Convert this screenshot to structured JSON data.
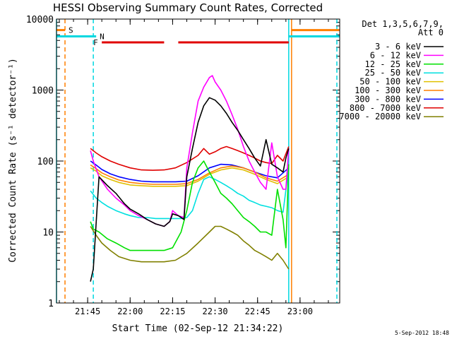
{
  "chart_data": {
    "type": "line",
    "title": "HESSI Observing Summary Count Rates, Corrected",
    "xlabel": "Start Time (02-Sep-12 21:34:22)",
    "ylabel": "Corrected Count Rate (s⁻¹ detector⁻¹)",
    "yscale": "log",
    "ylim": [
      1,
      10000
    ],
    "xlim": [
      "21:34",
      "23:14"
    ],
    "x_ticks": [
      "21:45",
      "22:00",
      "22:15",
      "22:30",
      "22:45",
      "23:00"
    ],
    "y_ticks": [
      "1",
      "10",
      "100",
      "1000",
      "10000"
    ],
    "legend_header": [
      "Det 1,3,5,6,7,9,",
      "Att 0"
    ],
    "legend_position": "right",
    "timestamp": "5-Sep-2012 18:48",
    "flags": [
      {
        "label": "S",
        "color": "#ff7f00",
        "y": 7000,
        "segments": [
          [
            "21:34",
            "21:37"
          ],
          [
            "22:57",
            "23:14"
          ]
        ]
      },
      {
        "label": "N",
        "color": "#00d8e0",
        "y": 5700,
        "segments": [
          [
            "21:34",
            "21:48"
          ],
          [
            "22:56",
            "23:14"
          ]
        ]
      },
      {
        "label": "F",
        "color": "#e00000",
        "y": 4700,
        "segments": [
          [
            "21:50",
            "22:12"
          ],
          [
            "22:17",
            "22:56"
          ]
        ]
      }
    ],
    "markers": [
      {
        "time": "21:34",
        "color": "#00d8e0",
        "style": "solid"
      },
      {
        "time": "21:37",
        "color": "#ff7f00",
        "style": "dashed"
      },
      {
        "time": "21:47",
        "color": "#00d8e0",
        "style": "dashed"
      },
      {
        "time": "22:56",
        "color": "#00d8e0",
        "style": "solid"
      },
      {
        "time": "22:57",
        "color": "#ff7f00",
        "style": "solid"
      },
      {
        "time": "23:13",
        "color": "#00d8e0",
        "style": "dashed"
      }
    ],
    "series": [
      {
        "name": "3 - 6 keV",
        "color": "#000000",
        "x": [
          "21:46",
          "21:47",
          "21:49",
          "21:52",
          "21:55",
          "21:58",
          "22:00",
          "22:03",
          "22:06",
          "22:09",
          "22:12",
          "22:14",
          "22:15",
          "22:17",
          "22:19",
          "22:20",
          "22:22",
          "22:24",
          "22:26",
          "22:28",
          "22:30",
          "22:32",
          "22:34",
          "22:36",
          "22:38",
          "22:40",
          "22:42",
          "22:44",
          "22:46",
          "22:48",
          "22:50",
          "22:52",
          "22:54",
          "22:55",
          "22:56"
        ],
        "y": [
          2,
          3,
          60,
          45,
          35,
          25,
          21,
          18,
          15,
          13,
          12,
          14,
          18,
          17,
          15,
          60,
          150,
          350,
          600,
          780,
          720,
          600,
          470,
          350,
          270,
          200,
          150,
          110,
          85,
          200,
          90,
          80,
          70,
          110,
          150
        ]
      },
      {
        "name": "6 - 12 keV",
        "color": "#ff00ff",
        "x": [
          "21:46",
          "21:47",
          "21:49",
          "21:52",
          "21:55",
          "21:58",
          "22:00",
          "22:03",
          "22:06",
          "22:09",
          "22:12",
          "22:14",
          "22:15",
          "22:17",
          "22:19",
          "22:20",
          "22:22",
          "22:24",
          "22:26",
          "22:28",
          "22:29",
          "22:30",
          "22:32",
          "22:34",
          "22:36",
          "22:38",
          "22:40",
          "22:42",
          "22:44",
          "22:46",
          "22:48",
          "22:50",
          "22:52",
          "22:54",
          "22:55",
          "22:56"
        ],
        "y": [
          140,
          100,
          60,
          40,
          30,
          24,
          20,
          17,
          15,
          13,
          12,
          14,
          20,
          17,
          16,
          80,
          250,
          700,
          1100,
          1500,
          1600,
          1300,
          1000,
          700,
          450,
          280,
          160,
          100,
          70,
          50,
          40,
          180,
          60,
          40,
          40,
          150
        ]
      },
      {
        "name": "12 - 25 keV",
        "color": "#00e000",
        "x": [
          "21:46",
          "21:47",
          "21:49",
          "21:52",
          "21:55",
          "21:58",
          "22:00",
          "22:03",
          "22:06",
          "22:09",
          "22:12",
          "22:15",
          "22:18",
          "22:20",
          "22:22",
          "22:24",
          "22:26",
          "22:28",
          "22:30",
          "22:32",
          "22:34",
          "22:36",
          "22:38",
          "22:40",
          "22:42",
          "22:44",
          "22:46",
          "22:48",
          "22:50",
          "22:52",
          "22:54",
          "22:55",
          "22:56"
        ],
        "y": [
          14,
          11,
          10,
          8,
          7,
          6,
          5.5,
          5.5,
          5.5,
          5.5,
          5.5,
          6,
          10,
          20,
          50,
          80,
          100,
          70,
          50,
          35,
          30,
          25,
          20,
          16,
          14,
          12,
          10,
          10,
          9,
          40,
          15,
          6,
          90
        ]
      },
      {
        "name": "25 - 50 keV",
        "color": "#00e0e0",
        "x": [
          "21:46",
          "21:48",
          "21:50",
          "21:52",
          "21:55",
          "21:58",
          "22:00",
          "22:03",
          "22:06",
          "22:09",
          "22:12",
          "22:15",
          "22:18",
          "22:20",
          "22:22",
          "22:24",
          "22:26",
          "22:28",
          "22:30",
          "22:32",
          "22:34",
          "22:36",
          "22:38",
          "22:40",
          "22:42",
          "22:44",
          "22:46",
          "22:48",
          "22:50",
          "22:52",
          "22:54",
          "22:56"
        ],
        "y": [
          38,
          30,
          26,
          23,
          20,
          18,
          17,
          16,
          16,
          15.5,
          15.5,
          15.5,
          15.5,
          16,
          20,
          35,
          55,
          60,
          55,
          50,
          45,
          40,
          35,
          32,
          28,
          26,
          24,
          23,
          22,
          20,
          19,
          80
        ]
      },
      {
        "name": "50 - 100 keV",
        "color": "#e0c000",
        "x": [
          "21:46",
          "21:48",
          "21:50",
          "21:53",
          "21:56",
          "22:00",
          "22:04",
          "22:08",
          "22:12",
          "22:16",
          "22:20",
          "22:24",
          "22:28",
          "22:32",
          "22:36",
          "22:40",
          "22:44",
          "22:48",
          "22:52",
          "22:56"
        ],
        "y": [
          80,
          72,
          62,
          55,
          50,
          46,
          45,
          44,
          44,
          44,
          45,
          52,
          65,
          75,
          80,
          75,
          65,
          55,
          48,
          60
        ]
      },
      {
        "name": "100 - 300 keV",
        "color": "#ff7f00",
        "x": [
          "21:46",
          "21:48",
          "21:50",
          "21:53",
          "21:56",
          "22:00",
          "22:04",
          "22:08",
          "22:12",
          "22:16",
          "22:20",
          "22:24",
          "22:28",
          "22:32",
          "22:36",
          "22:40",
          "22:44",
          "22:48",
          "22:52",
          "22:56"
        ],
        "y": [
          88,
          78,
          68,
          60,
          54,
          50,
          48,
          47,
          47,
          47,
          48,
          55,
          68,
          80,
          85,
          80,
          70,
          58,
          52,
          65
        ]
      },
      {
        "name": "300 - 800 keV",
        "color": "#0000ff",
        "x": [
          "21:46",
          "21:48",
          "21:50",
          "21:53",
          "21:56",
          "22:00",
          "22:04",
          "22:08",
          "22:12",
          "22:16",
          "22:20",
          "22:24",
          "22:28",
          "22:32",
          "22:36",
          "22:40",
          "22:44",
          "22:48",
          "22:52",
          "22:56"
        ],
        "y": [
          100,
          88,
          76,
          66,
          60,
          55,
          52,
          51,
          51,
          51,
          52,
          62,
          80,
          90,
          88,
          80,
          70,
          62,
          58,
          80
        ]
      },
      {
        "name": "800 - 7000 keV",
        "color": "#e00000",
        "x": [
          "21:46",
          "21:48",
          "21:50",
          "21:53",
          "21:56",
          "22:00",
          "22:04",
          "22:08",
          "22:12",
          "22:16",
          "22:20",
          "22:24",
          "22:26",
          "22:28",
          "22:30",
          "22:32",
          "22:34",
          "22:36",
          "22:38",
          "22:40",
          "22:42",
          "22:44",
          "22:46",
          "22:48",
          "22:50",
          "22:52",
          "22:54",
          "22:56"
        ],
        "y": [
          150,
          130,
          115,
          100,
          90,
          80,
          75,
          74,
          75,
          80,
          95,
          120,
          150,
          125,
          135,
          150,
          160,
          150,
          140,
          130,
          120,
          110,
          100,
          95,
          92,
          120,
          100,
          160
        ]
      },
      {
        "name": "7000 - 20000 keV",
        "color": "#808000",
        "x": [
          "21:46",
          "21:48",
          "21:50",
          "21:53",
          "21:56",
          "22:00",
          "22:04",
          "22:08",
          "22:12",
          "22:16",
          "22:20",
          "22:24",
          "22:28",
          "22:30",
          "22:32",
          "22:34",
          "22:36",
          "22:38",
          "22:40",
          "22:42",
          "22:44",
          "22:46",
          "22:48",
          "22:50",
          "22:52",
          "22:54",
          "22:56"
        ],
        "y": [
          12,
          9,
          7,
          5.5,
          4.5,
          4,
          3.8,
          3.8,
          3.8,
          4,
          5,
          7,
          10,
          12,
          12,
          11,
          10,
          9,
          7.5,
          6.5,
          5.5,
          5,
          4.5,
          4,
          5,
          4,
          3
        ]
      }
    ]
  }
}
